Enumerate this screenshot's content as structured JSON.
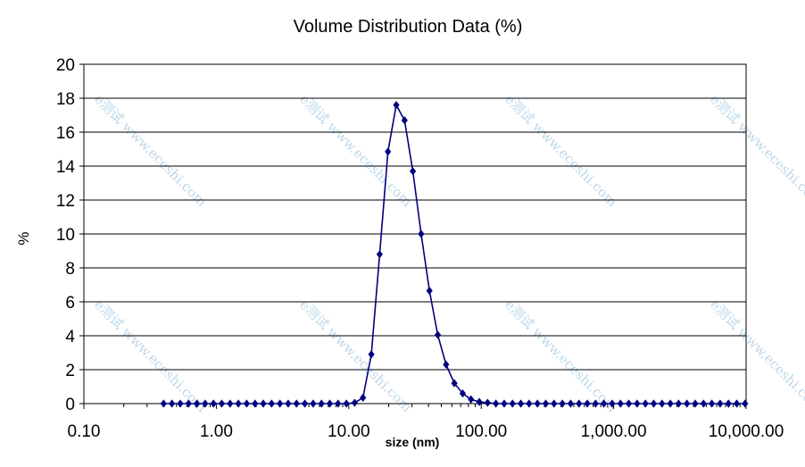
{
  "chart_data": {
    "type": "scatter",
    "title": "Volume Distribution Data (%)",
    "xlabel": "size (nm)",
    "ylabel": "%",
    "xscale": "log",
    "xlim": [
      0.1,
      10000
    ],
    "ylim": [
      0,
      20
    ],
    "x_ticks": [
      "0.10",
      "1.00",
      "10.00",
      "100.00",
      "1,000.00",
      "10,000.00"
    ],
    "y_ticks": [
      "0",
      "2",
      "4",
      "6",
      "8",
      "10",
      "12",
      "14",
      "16",
      "18",
      "20"
    ],
    "grid": "horizontal",
    "legend": "none",
    "watermark": "e测试 www.eceshi.com",
    "colors": {
      "series": "#000080",
      "grid": "#000000",
      "watermark": "#bcd8ea"
    },
    "marker": "diamond",
    "series": [
      {
        "x": [
          0.4,
          0.4621,
          0.5339,
          0.6169,
          0.7127,
          0.8234,
          0.9514,
          1.099,
          1.27,
          1.467,
          1.695,
          1.959,
          2.263,
          2.615,
          3.021,
          3.49,
          4.033,
          4.659,
          5.383,
          6.22,
          7.186,
          8.302,
          9.592,
          11.08,
          12.8,
          14.8,
          17.1,
          19.76,
          22.83,
          26.37,
          30.47,
          35.2,
          40.67,
          46.99,
          54.29,
          62.72,
          72.46,
          83.72,
          96.72,
          111.7,
          129.1,
          149.2,
          172.3,
          199.1,
          230,
          265.7,
          307.1,
          354.8,
          409.9,
          473.6,
          547.1,
          632.1,
          730.3,
          843.6,
          974.6,
          1126,
          1301,
          1503,
          1737,
          2007,
          2318,
          2678,
          3094,
          3575,
          4130,
          4771,
          5512,
          6368,
          7357,
          8499,
          9820
        ],
        "y": [
          0,
          0,
          0,
          0,
          0,
          0,
          0,
          0,
          0,
          0,
          0,
          0,
          0,
          0,
          0,
          0,
          0,
          0,
          0,
          0,
          0,
          0,
          0,
          0.05,
          0.35,
          2.9,
          8.8,
          14.85,
          17.6,
          16.7,
          13.7,
          10,
          6.65,
          4.05,
          2.3,
          1.2,
          0.6,
          0.25,
          0.1,
          0.05,
          0,
          0,
          0,
          0,
          0,
          0,
          0,
          0,
          0,
          0,
          0,
          0,
          0,
          0,
          0,
          0,
          0,
          0,
          0,
          0,
          0,
          0,
          0,
          0,
          0,
          0,
          0,
          0,
          0,
          0,
          0
        ]
      }
    ]
  }
}
